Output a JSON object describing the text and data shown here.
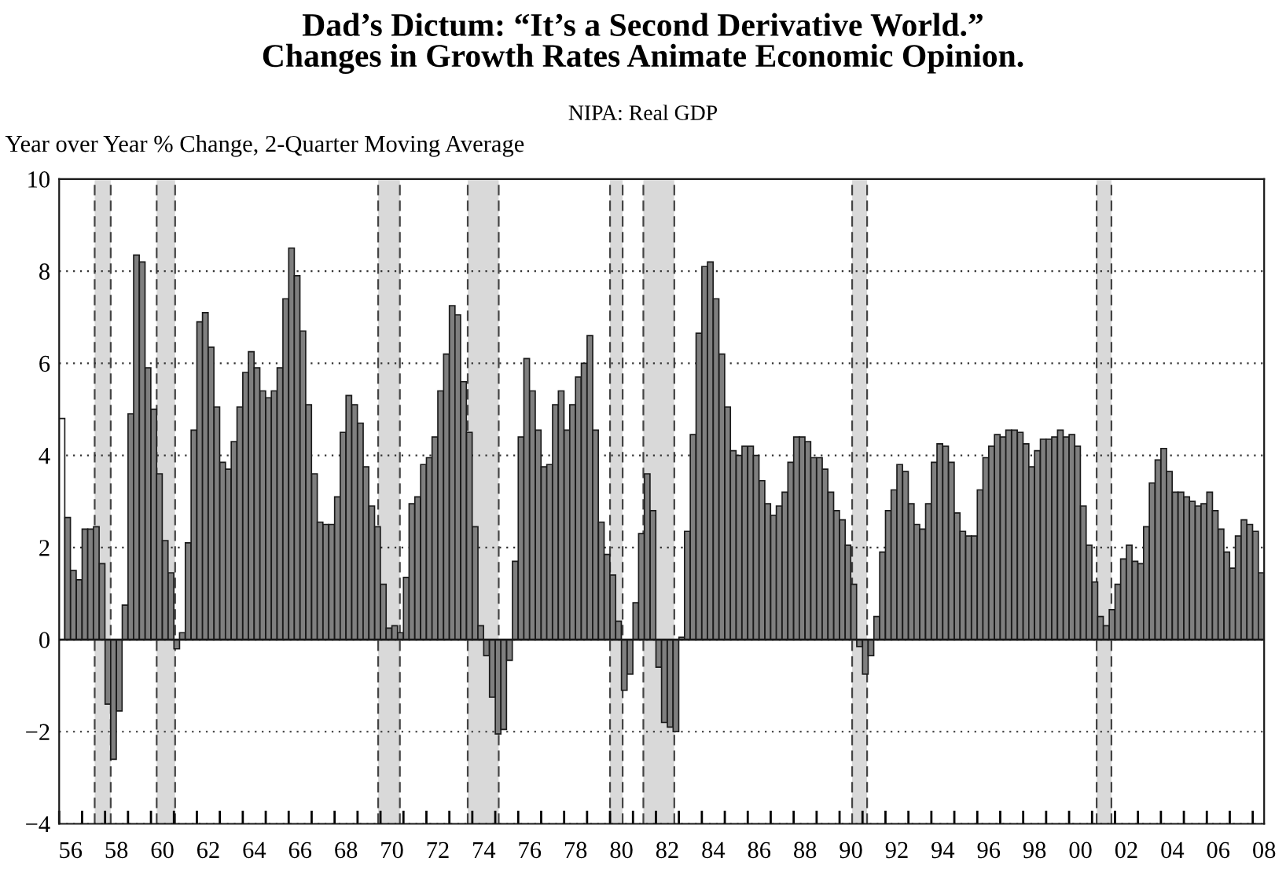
{
  "chart_data": {
    "type": "bar",
    "title": "Dad’s Dictum: “It’s a Second Derivative World.”\nChanges in Growth Rates Animate Economic Opinion.",
    "subtitle": "NIPA: Real GDP",
    "ylabel": "Year over Year % Change, 2-Quarter Moving Average",
    "series": [
      {
        "color": "#ffffff",
        "x": [
          "1956-02-15"
        ],
        "values": [
          4.8
        ]
      },
      {
        "color": "#7f7f7f",
        "x": [
          "1956-05-15",
          "1956-08-15",
          "1956-11-15",
          "1957-02-15",
          "1957-05-15",
          "1957-08-15",
          "1957-11-15",
          "1958-02-15",
          "1958-05-15",
          "1958-08-15",
          "1958-11-15",
          "1959-02-15",
          "1959-05-15",
          "1959-08-15",
          "1959-11-15",
          "1960-02-15",
          "1960-05-15",
          "1960-08-15",
          "1960-11-15",
          "1961-02-15",
          "1961-05-15",
          "1961-08-15",
          "1961-11-15",
          "1962-02-15",
          "1962-05-15",
          "1962-08-15",
          "1962-11-15",
          "1963-02-15",
          "1963-05-15",
          "1963-08-15",
          "1963-11-15",
          "1964-02-15",
          "1964-05-15",
          "1964-08-15",
          "1964-11-15",
          "1965-02-15",
          "1965-05-15",
          "1965-08-15",
          "1965-11-15",
          "1966-02-15",
          "1966-05-15",
          "1966-08-15",
          "1966-11-15",
          "1967-02-15",
          "1967-05-15",
          "1967-08-15",
          "1967-11-15",
          "1968-02-15",
          "1968-05-15",
          "1968-08-15",
          "1968-11-15",
          "1969-02-15",
          "1969-05-15",
          "1969-08-15",
          "1969-11-15",
          "1970-02-15",
          "1970-05-15",
          "1970-08-15",
          "1970-11-15",
          "1971-02-15",
          "1971-05-15",
          "1971-08-15",
          "1971-11-15",
          "1972-02-15",
          "1972-05-15",
          "1972-08-15",
          "1972-11-15",
          "1973-02-15",
          "1973-05-15",
          "1973-08-15",
          "1973-11-15",
          "1974-02-15",
          "1974-05-15",
          "1974-08-15",
          "1974-11-15",
          "1975-02-15",
          "1975-05-15",
          "1975-08-15",
          "1975-11-15",
          "1976-02-15",
          "1976-05-15",
          "1976-08-15",
          "1976-11-15",
          "1977-02-15",
          "1977-05-15",
          "1977-08-15",
          "1977-11-15",
          "1978-02-15",
          "1978-05-15",
          "1978-08-15",
          "1978-11-15",
          "1979-02-15",
          "1979-05-15",
          "1979-08-15",
          "1979-11-15",
          "1980-02-15",
          "1980-05-15",
          "1980-08-15",
          "1980-11-15",
          "1981-02-15",
          "1981-05-15",
          "1981-08-15",
          "1981-11-15",
          "1982-02-15",
          "1982-05-15",
          "1982-08-15",
          "1982-11-15",
          "1983-02-15",
          "1983-05-15",
          "1983-08-15",
          "1983-11-15",
          "1984-02-15",
          "1984-05-15",
          "1984-08-15",
          "1984-11-15",
          "1985-02-15",
          "1985-05-15",
          "1985-08-15",
          "1985-11-15",
          "1986-02-15",
          "1986-05-15",
          "1986-08-15",
          "1986-11-15",
          "1987-02-15",
          "1987-05-15",
          "1987-08-15",
          "1987-11-15",
          "1988-02-15",
          "1988-05-15",
          "1988-08-15",
          "1988-11-15",
          "1989-02-15",
          "1989-05-15",
          "1989-08-15",
          "1989-11-15",
          "1990-02-15",
          "1990-05-15",
          "1990-08-15",
          "1990-11-15",
          "1991-02-15",
          "1991-05-15",
          "1991-08-15",
          "1991-11-15",
          "1992-02-15",
          "1992-05-15",
          "1992-08-15",
          "1992-11-15",
          "1993-02-15",
          "1993-05-15",
          "1993-08-15",
          "1993-11-15",
          "1994-02-15",
          "1994-05-15",
          "1994-08-15",
          "1994-11-15",
          "1995-02-15",
          "1995-05-15",
          "1995-08-15",
          "1995-11-15",
          "1996-02-15",
          "1996-05-15",
          "1996-08-15",
          "1996-11-15",
          "1997-02-15",
          "1997-05-15",
          "1997-08-15",
          "1997-11-15",
          "1998-02-15",
          "1998-05-15",
          "1998-08-15",
          "1998-11-15",
          "1999-02-15",
          "1999-05-15",
          "1999-08-15",
          "1999-11-15",
          "2000-02-15",
          "2000-05-15",
          "2000-08-15",
          "2000-11-15",
          "2001-02-15",
          "2001-05-15",
          "2001-08-15",
          "2001-11-15",
          "2002-02-15",
          "2002-05-15",
          "2002-08-15",
          "2002-11-15",
          "2003-02-15",
          "2003-05-15",
          "2003-08-15",
          "2003-11-15",
          "2004-02-15",
          "2004-05-15",
          "2004-08-15",
          "2004-11-15",
          "2005-02-15",
          "2005-05-15",
          "2005-08-15",
          "2005-11-15",
          "2006-02-15",
          "2006-05-15",
          "2006-08-15",
          "2006-11-15",
          "2007-02-15",
          "2007-05-15",
          "2007-08-15",
          "2007-11-15",
          "2008-02-15",
          "2008-05-15"
        ],
        "values": [
          2.65,
          1.5,
          1.3,
          2.4,
          2.4,
          2.45,
          1.65,
          -1.4,
          -2.6,
          -1.55,
          0.75,
          4.9,
          8.35,
          8.2,
          5.9,
          5.0,
          3.6,
          2.15,
          1.45,
          -0.2,
          0.15,
          2.1,
          4.55,
          6.9,
          7.1,
          6.35,
          5.05,
          3.85,
          3.7,
          4.3,
          5.05,
          5.8,
          6.25,
          5.9,
          5.4,
          5.25,
          5.4,
          5.9,
          7.4,
          8.5,
          7.9,
          6.7,
          5.1,
          3.6,
          2.55,
          2.5,
          2.5,
          3.1,
          4.5,
          5.3,
          5.1,
          4.7,
          3.75,
          2.9,
          2.45,
          1.2,
          0.25,
          0.3,
          0.15,
          1.35,
          2.95,
          3.1,
          3.8,
          3.95,
          4.4,
          5.4,
          6.2,
          7.25,
          7.05,
          5.6,
          4.5,
          2.45,
          0.3,
          -0.35,
          -1.25,
          -2.05,
          -1.95,
          -0.45,
          1.7,
          4.4,
          6.1,
          5.4,
          4.55,
          3.75,
          3.8,
          5.1,
          5.4,
          4.55,
          5.1,
          5.7,
          6.0,
          6.6,
          4.55,
          2.55,
          1.85,
          1.4,
          0.4,
          -1.1,
          -0.75,
          0.8,
          2.3,
          3.6,
          2.8,
          -0.6,
          -1.8,
          -1.9,
          -2.0,
          0.05,
          2.35,
          4.45,
          6.65,
          8.1,
          8.2,
          7.4,
          6.2,
          5.05,
          4.1,
          4.0,
          4.2,
          4.2,
          4.0,
          3.45,
          2.95,
          2.7,
          2.9,
          3.2,
          3.85,
          4.4,
          4.4,
          4.3,
          3.95,
          3.95,
          3.7,
          3.2,
          2.8,
          2.6,
          2.05,
          1.2,
          -0.15,
          -0.75,
          -0.35,
          0.5,
          1.9,
          2.8,
          3.25,
          3.8,
          3.65,
          2.95,
          2.5,
          2.4,
          2.95,
          3.85,
          4.25,
          4.2,
          3.85,
          2.75,
          2.35,
          2.25,
          2.25,
          3.25,
          3.95,
          4.2,
          4.45,
          4.4,
          4.55,
          4.55,
          4.5,
          4.25,
          3.75,
          4.1,
          4.35,
          4.35,
          4.4,
          4.55,
          4.4,
          4.45,
          4.2,
          2.9,
          2.05,
          1.25,
          0.5,
          0.3,
          0.65,
          1.2,
          1.75,
          2.05,
          1.7,
          1.65,
          2.45,
          3.4,
          3.9,
          4.15,
          3.65,
          3.2,
          3.2,
          3.1,
          3.0,
          2.9,
          2.95,
          3.2,
          2.8,
          2.4,
          1.9,
          1.55,
          2.25,
          2.6,
          2.5,
          2.35,
          1.45
        ]
      }
    ],
    "xlim": [
      "1956-01-01",
      "2008-07-01"
    ],
    "xticks": [
      {
        "value": "1956",
        "label": null
      },
      {
        "value": "1957",
        "label": null
      },
      {
        "value": "1958",
        "label": null
      },
      {
        "value": "1959",
        "label": null
      },
      {
        "value": "1960",
        "label": null
      },
      {
        "value": "1961",
        "label": null
      },
      {
        "value": "1962",
        "label": null
      },
      {
        "value": "1963",
        "label": null
      },
      {
        "value": "1964",
        "label": null
      },
      {
        "value": "1965",
        "label": null
      },
      {
        "value": "1966",
        "label": null
      },
      {
        "value": "1967",
        "label": null
      },
      {
        "value": "1968",
        "label": null
      },
      {
        "value": "1969",
        "label": null
      },
      {
        "value": "1970",
        "label": null
      },
      {
        "value": "1971",
        "label": null
      },
      {
        "value": "1972",
        "label": null
      },
      {
        "value": "1973",
        "label": null
      },
      {
        "value": "1974",
        "label": null
      },
      {
        "value": "1975",
        "label": null
      },
      {
        "value": "1976",
        "label": null
      },
      {
        "value": "1977",
        "label": null
      },
      {
        "value": "1978",
        "label": null
      },
      {
        "value": "1979",
        "label": null
      },
      {
        "value": "1980",
        "label": null
      },
      {
        "value": "1981",
        "label": null
      },
      {
        "value": "1982",
        "label": null
      },
      {
        "value": "1983",
        "label": null
      },
      {
        "value": "1984",
        "label": null
      },
      {
        "value": "1985",
        "label": null
      },
      {
        "value": "1986",
        "label": null
      },
      {
        "value": "1987",
        "label": null
      },
      {
        "value": "1988",
        "label": null
      },
      {
        "value": "1989",
        "label": null
      },
      {
        "value": "1990",
        "label": null
      },
      {
        "value": "1991",
        "label": null
      },
      {
        "value": "1992",
        "label": null
      },
      {
        "value": "1993",
        "label": null
      },
      {
        "value": "1994",
        "label": null
      },
      {
        "value": "1995",
        "label": null
      },
      {
        "value": "1996",
        "label": null
      },
      {
        "value": "1997",
        "label": null
      },
      {
        "value": "1998",
        "label": null
      },
      {
        "value": "1999",
        "label": null
      },
      {
        "value": "2000",
        "label": null
      },
      {
        "value": "2001",
        "label": null
      },
      {
        "value": "2002",
        "label": null
      },
      {
        "value": "2003",
        "label": null
      },
      {
        "value": "2004",
        "label": null
      },
      {
        "value": "2005",
        "label": null
      },
      {
        "value": "2006",
        "label": null
      },
      {
        "value": "2007",
        "label": null
      },
      {
        "value": "2008",
        "label": null
      },
      {
        "value": "1956-07",
        "label": "56"
      },
      {
        "value": "1958-07",
        "label": "58"
      },
      {
        "value": "1960-07",
        "label": "60"
      },
      {
        "value": "1962-07",
        "label": "62"
      },
      {
        "value": "1964-07",
        "label": "64"
      },
      {
        "value": "1966-07",
        "label": "66"
      },
      {
        "value": "1968-07",
        "label": "68"
      },
      {
        "value": "1970-07",
        "label": "70"
      },
      {
        "value": "1972-07",
        "label": "72"
      },
      {
        "value": "1974-07",
        "label": "74"
      },
      {
        "value": "1976-07",
        "label": "76"
      },
      {
        "value": "1978-07",
        "label": "78"
      },
      {
        "value": "1980-07",
        "label": "80"
      },
      {
        "value": "1982-07",
        "label": "82"
      },
      {
        "value": "1984-07",
        "label": "84"
      },
      {
        "value": "1986-07",
        "label": "86"
      },
      {
        "value": "1988-07",
        "label": "88"
      },
      {
        "value": "1990-07",
        "label": "90"
      },
      {
        "value": "1992-07",
        "label": "92"
      },
      {
        "value": "1994-07",
        "label": "94"
      },
      {
        "value": "1996-07",
        "label": "96"
      },
      {
        "value": "1998-07",
        "label": "98"
      },
      {
        "value": "2000-07",
        "label": "00"
      },
      {
        "value": "2002-07",
        "label": "02"
      },
      {
        "value": "2004-07",
        "label": "04"
      },
      {
        "value": "2006-07",
        "label": "06"
      },
      {
        "value": "2008-07",
        "label": "08"
      }
    ],
    "ylim": [
      -4,
      10
    ],
    "yticks": [
      {
        "value": -4,
        "label": "−4"
      },
      {
        "value": -2,
        "label": "−2"
      },
      0,
      2,
      4,
      6,
      8,
      10
    ],
    "grid": "y",
    "ref_lines": [
      {
        "axis": "x",
        "value": "1957-07-20",
        "line_style": "dashed",
        "color": "#444444"
      },
      {
        "axis": "x",
        "value": "1958-04-01",
        "line_style": "dashed",
        "color": "#444444"
      },
      {
        "axis": "x",
        "value": "1960-04-01",
        "line_style": "dashed",
        "color": "#444444"
      },
      {
        "axis": "x",
        "value": "1961-01-20",
        "line_style": "dashed",
        "color": "#444444"
      },
      {
        "axis": "x",
        "value": "1969-11-25",
        "line_style": "dashed",
        "color": "#444444"
      },
      {
        "axis": "x",
        "value": "1970-11-05",
        "line_style": "dashed",
        "color": "#444444"
      },
      {
        "axis": "x",
        "value": "1973-10-20",
        "line_style": "dashed",
        "color": "#444444"
      },
      {
        "axis": "x",
        "value": "1975-02-25",
        "line_style": "dashed",
        "color": "#444444"
      },
      {
        "axis": "x",
        "value": "1980-01-01",
        "line_style": "dashed",
        "color": "#444444"
      },
      {
        "axis": "x",
        "value": "1980-07-20",
        "line_style": "dashed",
        "color": "#444444"
      },
      {
        "axis": "x",
        "value": "1981-06-15",
        "line_style": "dashed",
        "color": "#444444"
      },
      {
        "axis": "x",
        "value": "1982-10-20",
        "line_style": "dashed",
        "color": "#444444"
      },
      {
        "axis": "x",
        "value": "1990-07-20",
        "line_style": "dashed",
        "color": "#444444"
      },
      {
        "axis": "x",
        "value": "1991-03-15",
        "line_style": "dashed",
        "color": "#444444"
      },
      {
        "axis": "x",
        "value": "2001-03-15",
        "line_style": "dashed",
        "color": "#444444"
      },
      {
        "axis": "x",
        "value": "2001-11-05",
        "line_style": "dashed",
        "color": "#444444"
      }
    ],
    "bands": [
      {
        "axis": "x",
        "from": "1957-07-20",
        "to": "1958-04-01",
        "color": "#d9d9d9"
      },
      {
        "axis": "x",
        "from": "1960-04-01",
        "to": "1961-01-20",
        "color": "#d9d9d9"
      },
      {
        "axis": "x",
        "from": "1969-11-25",
        "to": "1970-11-05",
        "color": "#d9d9d9"
      },
      {
        "axis": "x",
        "from": "1973-10-20",
        "to": "1975-02-25",
        "color": "#d9d9d9"
      },
      {
        "axis": "x",
        "from": "1980-01-01",
        "to": "1980-07-20",
        "color": "#d9d9d9"
      },
      {
        "axis": "x",
        "from": "1981-06-15",
        "to": "1982-10-20",
        "color": "#d9d9d9"
      },
      {
        "axis": "x",
        "from": "1990-07-20",
        "to": "1991-03-15",
        "color": "#d9d9d9"
      },
      {
        "axis": "x",
        "from": "2001-03-15",
        "to": "2001-11-05",
        "color": "#d9d9d9"
      }
    ]
  }
}
